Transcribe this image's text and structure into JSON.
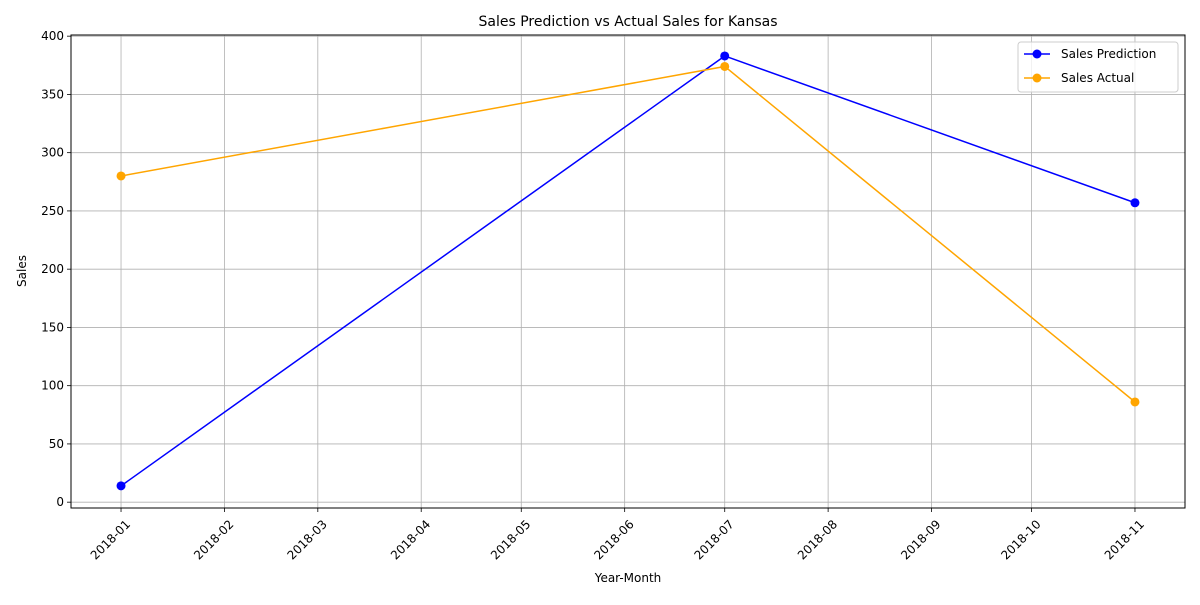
{
  "chart_data": {
    "type": "line",
    "title": "Sales Prediction vs Actual Sales for Kansas",
    "xlabel": "Year-Month",
    "ylabel": "Sales",
    "x_ticks": [
      "2018-01",
      "2018-02",
      "2018-03",
      "2018-04",
      "2018-05",
      "2018-06",
      "2018-07",
      "2018-08",
      "2018-09",
      "2018-10",
      "2018-11"
    ],
    "y_ticks": [
      0,
      50,
      100,
      150,
      200,
      250,
      300,
      350,
      400
    ],
    "ylim": [
      -5,
      401
    ],
    "xlim": [
      "2017-12-17",
      "2018-11-16"
    ],
    "grid": true,
    "legend_position": "top-right",
    "series": [
      {
        "name": "Sales Prediction",
        "color": "#0000ff",
        "marker": "circle",
        "points": [
          {
            "x": "2018-01",
            "y": 14
          },
          {
            "x": "2018-07",
            "y": 383
          },
          {
            "x": "2018-11",
            "y": 257
          }
        ]
      },
      {
        "name": "Sales Actual",
        "color": "#ffa500",
        "marker": "circle",
        "points": [
          {
            "x": "2018-01",
            "y": 280
          },
          {
            "x": "2018-07",
            "y": 374
          },
          {
            "x": "2018-11",
            "y": 86
          }
        ]
      }
    ]
  }
}
